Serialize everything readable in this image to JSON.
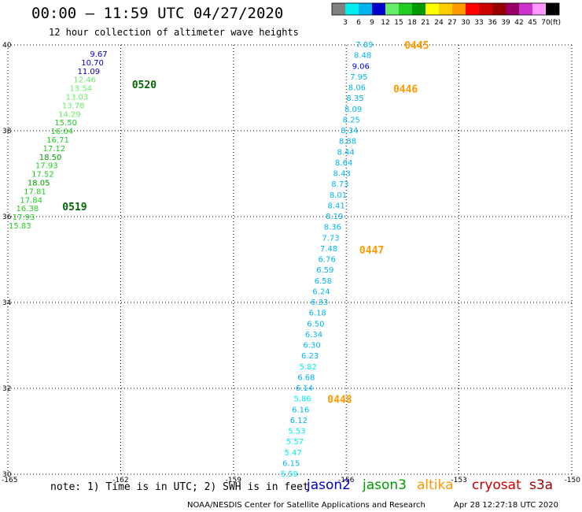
{
  "title": "00:00 – 11:59 UTC 04/27/2020",
  "subtitle": "12 hour collection of altimeter wave heights",
  "note": "note: 1) Time is in UTC; 2) SWH is in feet",
  "credit": "NOAA/NESDIS Center for Satellite Applications and Research",
  "timestamp": "Apr 28 12:27:18 UTC 2020",
  "colorbar": {
    "unit": "(ft)",
    "labels": [
      "3",
      "6",
      "9",
      "12",
      "15",
      "18",
      "21",
      "24",
      "27",
      "30",
      "33",
      "36",
      "39",
      "42",
      "45",
      "70"
    ],
    "colors": [
      "#808080",
      "#00eeee",
      "#00b4f0",
      "#0000cd",
      "#66ee66",
      "#22cc22",
      "#009900",
      "#ffff00",
      "#ffcc00",
      "#ff9900",
      "#ff0000",
      "#cc0000",
      "#990000",
      "#990066",
      "#cc33cc",
      "#ff99ff",
      "#000000"
    ]
  },
  "satellites": [
    {
      "name": "jason2",
      "color": "#0000cc"
    },
    {
      "name": "jason3",
      "color": "#009900"
    },
    {
      "name": "altika",
      "color": "#ff9900"
    },
    {
      "name": "cryosat",
      "color": "#cc0000"
    },
    {
      "name": "s3a",
      "color": "#990000"
    }
  ],
  "chart_data": {
    "type": "scatter",
    "xlim": [
      -165,
      -150
    ],
    "ylim": [
      30,
      40
    ],
    "x_ticks": [
      "-165",
      "-162",
      "-159",
      "-156",
      "-153",
      "-150"
    ],
    "y_ticks": [
      "30",
      "32",
      "34",
      "36",
      "38",
      "40"
    ],
    "grid": true,
    "tracks": [
      {
        "satellite": "jason3",
        "points": [
          {
            "lon": -162.35,
            "lat": 39.78,
            "swh": "9.67",
            "color": "#0000cd"
          },
          {
            "lon": -162.45,
            "lat": 39.58,
            "swh": "10.70",
            "color": "#0000cd"
          },
          {
            "lon": -162.55,
            "lat": 39.38,
            "swh": "11.09",
            "color": "#0000cd"
          },
          {
            "lon": -162.66,
            "lat": 39.18,
            "swh": "12.46",
            "color": "#66ee66"
          },
          {
            "lon": -162.76,
            "lat": 38.98,
            "swh": "13.54",
            "color": "#66ee66"
          },
          {
            "lon": -162.86,
            "lat": 38.78,
            "swh": "13.03",
            "color": "#66ee66"
          },
          {
            "lon": -162.96,
            "lat": 38.58,
            "swh": "13.78",
            "color": "#66ee66"
          },
          {
            "lon": -163.06,
            "lat": 38.38,
            "swh": "14.29",
            "color": "#66ee66"
          },
          {
            "lon": -163.16,
            "lat": 38.18,
            "swh": "15.50",
            "color": "#22cc22"
          },
          {
            "lon": -163.26,
            "lat": 37.98,
            "swh": "16.04",
            "color": "#22cc22"
          },
          {
            "lon": -163.37,
            "lat": 37.78,
            "swh": "16.71",
            "color": "#22cc22"
          },
          {
            "lon": -163.47,
            "lat": 37.58,
            "swh": "17.12",
            "color": "#22cc22"
          },
          {
            "lon": -163.57,
            "lat": 37.38,
            "swh": "18.50",
            "color": "#009900"
          },
          {
            "lon": -163.67,
            "lat": 37.18,
            "swh": "17.93",
            "color": "#22cc22"
          },
          {
            "lon": -163.77,
            "lat": 36.98,
            "swh": "17.52",
            "color": "#22cc22"
          },
          {
            "lon": -163.88,
            "lat": 36.78,
            "swh": "18.05",
            "color": "#009900"
          },
          {
            "lon": -163.98,
            "lat": 36.58,
            "swh": "17.81",
            "color": "#22cc22"
          },
          {
            "lon": -164.08,
            "lat": 36.38,
            "swh": "17.84",
            "color": "#22cc22"
          },
          {
            "lon": -164.18,
            "lat": 36.18,
            "swh": "16.38",
            "color": "#22cc22"
          },
          {
            "lon": -164.28,
            "lat": 35.98,
            "swh": "17.93",
            "color": "#22cc22"
          },
          {
            "lon": -164.38,
            "lat": 35.78,
            "swh": "15.83",
            "color": "#22cc22"
          }
        ],
        "time_labels": [
          {
            "text": "0520",
            "lon": -161.7,
            "lat": 39.08
          },
          {
            "text": "0519",
            "lon": -163.55,
            "lat": 36.24
          }
        ]
      },
      {
        "satellite": "altika",
        "points": [
          {
            "lon": -155.28,
            "lat": 40.0,
            "swh": "7.89",
            "color": "#00b4f0"
          },
          {
            "lon": -155.33,
            "lat": 39.75,
            "swh": "8.48",
            "color": "#00b4f0"
          },
          {
            "lon": -155.38,
            "lat": 39.5,
            "swh": "9.06",
            "color": "#0000cd"
          },
          {
            "lon": -155.43,
            "lat": 39.25,
            "swh": "7.95",
            "color": "#00b4f0"
          },
          {
            "lon": -155.48,
            "lat": 39.0,
            "swh": "8.06",
            "color": "#00b4f0"
          },
          {
            "lon": -155.53,
            "lat": 38.75,
            "swh": "8.35",
            "color": "#00b4f0"
          },
          {
            "lon": -155.58,
            "lat": 38.5,
            "swh": "8.09",
            "color": "#00b4f0"
          },
          {
            "lon": -155.63,
            "lat": 38.25,
            "swh": "8.25",
            "color": "#00b4f0"
          },
          {
            "lon": -155.68,
            "lat": 38.0,
            "swh": "8.34",
            "color": "#00b4f0"
          },
          {
            "lon": -155.73,
            "lat": 37.75,
            "swh": "8.88",
            "color": "#00b4f0"
          },
          {
            "lon": -155.78,
            "lat": 37.5,
            "swh": "8.44",
            "color": "#00b4f0"
          },
          {
            "lon": -155.83,
            "lat": 37.25,
            "swh": "8.64",
            "color": "#00b4f0"
          },
          {
            "lon": -155.88,
            "lat": 37.0,
            "swh": "8.43",
            "color": "#00b4f0"
          },
          {
            "lon": -155.93,
            "lat": 36.75,
            "swh": "8.73",
            "color": "#00b4f0"
          },
          {
            "lon": -155.98,
            "lat": 36.5,
            "swh": "8.01",
            "color": "#00b4f0"
          },
          {
            "lon": -156.03,
            "lat": 36.25,
            "swh": "8.41",
            "color": "#00b4f0"
          },
          {
            "lon": -156.08,
            "lat": 36.0,
            "swh": "8.19",
            "color": "#00b4f0"
          },
          {
            "lon": -156.13,
            "lat": 35.75,
            "swh": "8.36",
            "color": "#00b4f0"
          },
          {
            "lon": -156.18,
            "lat": 35.5,
            "swh": "7.73",
            "color": "#00b4f0"
          },
          {
            "lon": -156.23,
            "lat": 35.25,
            "swh": "7.48",
            "color": "#00b4f0"
          },
          {
            "lon": -156.28,
            "lat": 35.0,
            "swh": "6.76",
            "color": "#00b4f0"
          },
          {
            "lon": -156.33,
            "lat": 34.75,
            "swh": "6.59",
            "color": "#00b4f0"
          },
          {
            "lon": -156.38,
            "lat": 34.5,
            "swh": "6.58",
            "color": "#00b4f0"
          },
          {
            "lon": -156.43,
            "lat": 34.25,
            "swh": "6.24",
            "color": "#00b4f0"
          },
          {
            "lon": -156.48,
            "lat": 34.0,
            "swh": "6.33",
            "color": "#00b4f0"
          },
          {
            "lon": -156.53,
            "lat": 33.75,
            "swh": "6.18",
            "color": "#00b4f0"
          },
          {
            "lon": -156.58,
            "lat": 33.5,
            "swh": "6.50",
            "color": "#00b4f0"
          },
          {
            "lon": -156.63,
            "lat": 33.25,
            "swh": "6.34",
            "color": "#00b4f0"
          },
          {
            "lon": -156.68,
            "lat": 33.0,
            "swh": "6.30",
            "color": "#00b4f0"
          },
          {
            "lon": -156.73,
            "lat": 32.75,
            "swh": "6.23",
            "color": "#00b4f0"
          },
          {
            "lon": -156.78,
            "lat": 32.5,
            "swh": "5.82",
            "color": "#00eeee"
          },
          {
            "lon": -156.83,
            "lat": 32.25,
            "swh": "6.68",
            "color": "#00b4f0"
          },
          {
            "lon": -156.88,
            "lat": 32.0,
            "swh": "6.14",
            "color": "#00b4f0"
          },
          {
            "lon": -156.93,
            "lat": 31.75,
            "swh": "5.86",
            "color": "#00eeee"
          },
          {
            "lon": -156.98,
            "lat": 31.5,
            "swh": "6.16",
            "color": "#00b4f0"
          },
          {
            "lon": -157.03,
            "lat": 31.25,
            "swh": "6.12",
            "color": "#00b4f0"
          },
          {
            "lon": -157.08,
            "lat": 31.0,
            "swh": "5.53",
            "color": "#00eeee"
          },
          {
            "lon": -157.13,
            "lat": 30.75,
            "swh": "5.57",
            "color": "#00eeee"
          },
          {
            "lon": -157.18,
            "lat": 30.5,
            "swh": "5.47",
            "color": "#00eeee"
          },
          {
            "lon": -157.23,
            "lat": 30.25,
            "swh": "6.15",
            "color": "#00b4f0"
          },
          {
            "lon": -157.28,
            "lat": 30.0,
            "swh": "5.59",
            "color": "#00eeee"
          }
        ],
        "time_labels": [
          {
            "text": "0445",
            "lon": -154.45,
            "lat": 40.0
          },
          {
            "text": "0446",
            "lon": -154.75,
            "lat": 38.98
          },
          {
            "text": "0447",
            "lon": -155.65,
            "lat": 35.23
          },
          {
            "text": "0448",
            "lon": -156.5,
            "lat": 31.75
          }
        ]
      }
    ]
  }
}
